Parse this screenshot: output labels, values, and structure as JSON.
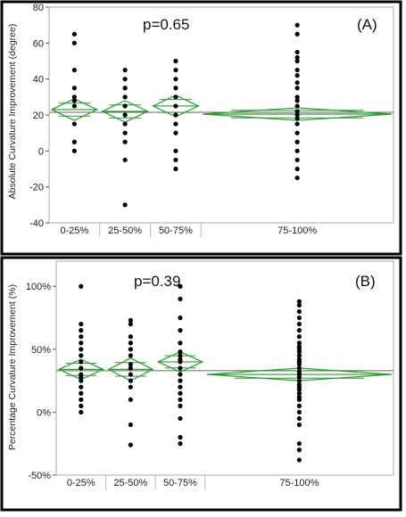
{
  "chart_data": [
    {
      "type": "scatter",
      "panel_label": "(A)",
      "p_value": "p=0.65",
      "ylabel": "Absolute Curvature Improvement (degree)",
      "ylim": [
        -40,
        80
      ],
      "yticks": [
        -40,
        -20,
        0,
        20,
        40,
        60,
        80
      ],
      "ytick_labels": [
        "-40",
        "-20",
        "0",
        "20",
        "40",
        "60",
        "80"
      ],
      "grand_mean": 21.5,
      "categories": [
        "0-25%",
        "25-50%",
        "50-75%",
        "75-100%"
      ],
      "groups": [
        {
          "label": "0-25%",
          "weight": 1,
          "mean": 23,
          "ci": [
            17,
            29
          ],
          "values": [
            65,
            60,
            45,
            35,
            30,
            28,
            25,
            15,
            5,
            0
          ]
        },
        {
          "label": "25-50%",
          "weight": 1,
          "mean": 22,
          "ci": [
            16,
            28
          ],
          "values": [
            45,
            40,
            35,
            30,
            25,
            20,
            15,
            10,
            5,
            -5,
            -30
          ]
        },
        {
          "label": "50-75%",
          "weight": 1,
          "mean": 25,
          "ci": [
            19,
            31
          ],
          "values": [
            50,
            45,
            40,
            35,
            30,
            25,
            20,
            15,
            10,
            0,
            -5,
            -10
          ]
        },
        {
          "label": "75-100%",
          "weight": 3.8,
          "mean": 20.5,
          "ci": [
            17,
            24
          ],
          "values": [
            70,
            65,
            55,
            52,
            50,
            45,
            42,
            38,
            35,
            30,
            28,
            25,
            22,
            20,
            18,
            15,
            10,
            5,
            0,
            -5,
            -10,
            -15
          ]
        }
      ]
    },
    {
      "type": "scatter",
      "panel_label": "(B)",
      "p_value": "p=0.39",
      "ylabel": "Percentage Curvature Improvement (%)",
      "ylim": [
        -50,
        120
      ],
      "yticks": [
        -50,
        0,
        50,
        100
      ],
      "ytick_labels": [
        "-50%",
        "0%",
        "50%",
        "100%"
      ],
      "grand_mean": 33,
      "categories": [
        "0-25%",
        "25-50%",
        "50-75%",
        "75-100%"
      ],
      "groups": [
        {
          "label": "0-25%",
          "weight": 1,
          "mean": 34,
          "ci": [
            26,
            42
          ],
          "values": [
            100,
            70,
            65,
            60,
            55,
            50,
            45,
            40,
            35,
            30,
            28,
            25,
            20,
            15,
            10,
            5,
            0
          ]
        },
        {
          "label": "25-50%",
          "weight": 1,
          "mean": 34,
          "ci": [
            25,
            43
          ],
          "values": [
            73,
            70,
            60,
            55,
            50,
            45,
            38,
            35,
            30,
            25,
            20,
            10,
            -10,
            -26
          ]
        },
        {
          "label": "50-75%",
          "weight": 1,
          "mean": 40,
          "ci": [
            32,
            48
          ],
          "values": [
            100,
            90,
            75,
            65,
            55,
            48,
            45,
            42,
            40,
            35,
            30,
            25,
            20,
            15,
            10,
            5,
            -5,
            -20,
            -25
          ]
        },
        {
          "label": "75-100%",
          "weight": 3.8,
          "mean": 30,
          "ci": [
            25,
            35
          ],
          "values": [
            88,
            85,
            80,
            75,
            70,
            65,
            60,
            55,
            52,
            50,
            48,
            45,
            42,
            40,
            38,
            35,
            32,
            30,
            28,
            25,
            22,
            20,
            18,
            15,
            12,
            10,
            5,
            0,
            -5,
            -10,
            -25,
            -30,
            -38
          ]
        }
      ]
    }
  ]
}
